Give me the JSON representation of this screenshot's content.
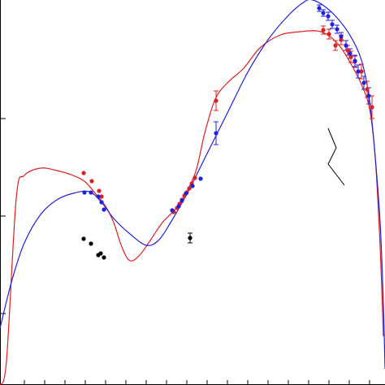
{
  "chart_data": {
    "type": "scatter",
    "title": "",
    "xlabel": "",
    "ylabel": "",
    "xlim": [
      0,
      474
    ],
    "ylim": [
      0,
      474
    ],
    "grid": false,
    "legend": "none",
    "x_ticks": [
      30,
      55,
      80,
      105,
      130,
      155,
      180,
      205,
      230,
      255,
      280,
      305,
      330,
      355,
      380,
      405,
      430,
      455
    ],
    "y_ticks": [
      328,
      208,
      88
    ],
    "colors": {
      "red": "#e02020",
      "blue": "#2020e0",
      "black": "#000000",
      "axis": "#000000"
    },
    "series": [
      {
        "color": "red",
        "kind": "model-curve",
        "points": [
          [
            0,
            0
          ],
          [
            8,
            30
          ],
          [
            20,
            230
          ],
          [
            30,
            258
          ],
          [
            50,
            267
          ],
          [
            70,
            264
          ],
          [
            90,
            258
          ],
          [
            105,
            250
          ],
          [
            118,
            235
          ],
          [
            130,
            220
          ],
          [
            140,
            200
          ],
          [
            150,
            170
          ],
          [
            160,
            153
          ],
          [
            172,
            160
          ],
          [
            185,
            178
          ],
          [
            200,
            200
          ],
          [
            220,
            222
          ],
          [
            240,
            260
          ],
          [
            252,
            310
          ],
          [
            265,
            352
          ],
          [
            280,
            372
          ],
          [
            300,
            390
          ],
          [
            320,
            415
          ],
          [
            345,
            431
          ],
          [
            370,
            435
          ],
          [
            390,
            436
          ],
          [
            405,
            430
          ],
          [
            420,
            415
          ],
          [
            435,
            390
          ],
          [
            445,
            370
          ],
          [
            455,
            340
          ],
          [
            462,
            280
          ],
          [
            468,
            170
          ],
          [
            472,
            60
          ]
        ]
      },
      {
        "color": "blue",
        "kind": "model-curve",
        "points": [
          [
            0,
            70
          ],
          [
            15,
            130
          ],
          [
            30,
            175
          ],
          [
            50,
            210
          ],
          [
            70,
            228
          ],
          [
            90,
            236
          ],
          [
            110,
            238
          ],
          [
            125,
            225
          ],
          [
            140,
            205
          ],
          [
            160,
            186
          ],
          [
            180,
            172
          ],
          [
            195,
            178
          ],
          [
            210,
            200
          ],
          [
            230,
            235
          ],
          [
            255,
            285
          ],
          [
            280,
            335
          ],
          [
            305,
            385
          ],
          [
            330,
            425
          ],
          [
            355,
            455
          ],
          [
            375,
            472
          ],
          [
            385,
            474
          ],
          [
            400,
            466
          ],
          [
            415,
            452
          ],
          [
            430,
            432
          ],
          [
            445,
            400
          ],
          [
            455,
            350
          ],
          [
            462,
            280
          ],
          [
            468,
            200
          ],
          [
            472,
            100
          ],
          [
            474,
            20
          ]
        ]
      },
      {
        "color": "red",
        "kind": "data",
        "points": [
          [
            103,
            261,
            0
          ],
          [
            113,
            251,
            0
          ],
          [
            122,
            239,
            0
          ],
          [
            125,
            232,
            0
          ],
          [
            266,
            350,
            12
          ],
          [
            214,
            213,
            0
          ],
          [
            218,
            218,
            0
          ],
          [
            221,
            223,
            0
          ],
          [
            224,
            228,
            0
          ],
          [
            227,
            233,
            0
          ],
          [
            230,
            237,
            0
          ],
          [
            233,
            242,
            0
          ],
          [
            236,
            248,
            0
          ],
          [
            240,
            255,
            0
          ],
          [
            398,
            437,
            5
          ],
          [
            405,
            432,
            6
          ],
          [
            413,
            418,
            6
          ],
          [
            420,
            425,
            6
          ],
          [
            428,
            412,
            6
          ],
          [
            432,
            404,
            7
          ],
          [
            437,
            398,
            7
          ],
          [
            445,
            386,
            9
          ],
          [
            452,
            364,
            10
          ],
          [
            458,
            342,
            14
          ]
        ]
      },
      {
        "color": "blue",
        "kind": "data",
        "points": [
          [
            104,
            237,
            0
          ],
          [
            112,
            237,
            0
          ],
          [
            121,
            232,
            0
          ],
          [
            125,
            225,
            0
          ],
          [
            128,
            216,
            0
          ],
          [
            266,
            310,
            14
          ],
          [
            212,
            215,
            0
          ],
          [
            220,
            220,
            0
          ],
          [
            224,
            227,
            0
          ],
          [
            229,
            236,
            0
          ],
          [
            237,
            245,
            0
          ],
          [
            247,
            254,
            0
          ],
          [
            393,
            464,
            4
          ],
          [
            398,
            458,
            4
          ],
          [
            404,
            454,
            5
          ],
          [
            409,
            444,
            5
          ],
          [
            415,
            438,
            5
          ],
          [
            420,
            429,
            5
          ],
          [
            426,
            418,
            6
          ],
          [
            431,
            408,
            6
          ],
          [
            437,
            399,
            7
          ],
          [
            441,
            386,
            8
          ],
          [
            448,
            372,
            8
          ],
          [
            454,
            356,
            10
          ]
        ]
      },
      {
        "color": "black",
        "kind": "data",
        "points": [
          [
            103,
            180,
            0
          ],
          [
            112,
            174,
            0
          ],
          [
            121,
            160,
            0
          ],
          [
            124,
            162,
            0
          ],
          [
            128,
            157,
            0
          ],
          [
            234,
            181,
            6
          ]
        ]
      }
    ],
    "annotation": {
      "kind": "lightning-symbol",
      "points": [
        [
          404,
          316
        ],
        [
          414,
          292
        ],
        [
          404,
          272
        ],
        [
          424,
          246
        ]
      ]
    }
  }
}
